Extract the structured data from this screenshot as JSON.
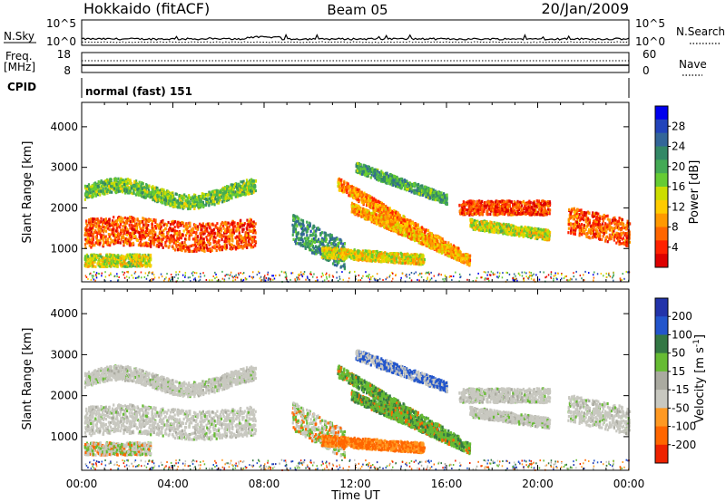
{
  "header": {
    "station": "Hokkaido (fitACF)",
    "beam": "Beam 05",
    "date": "20/Jan/2009"
  },
  "top_panels": {
    "nsky_label": "N.Sky",
    "nsky_ticks": [
      "10^5",
      "10^0"
    ],
    "nsearch_label": "N.Search",
    "nsearch_ticks": [
      "10^5",
      "10^0"
    ],
    "freq_label_1": "Freq.",
    "freq_label_2": "[MHz]",
    "freq_ticks": [
      "18",
      "8"
    ],
    "nave_label": "Nave",
    "nave_ticks": [
      "60",
      "0"
    ],
    "cpid_label": "CPID",
    "cpid_text": "normal (fast) 151"
  },
  "chart_data": [
    {
      "type": "heatmap",
      "name": "power",
      "ylabel": "Slant Range [km]",
      "yticks": [
        "1000",
        "2000",
        "3000",
        "4000"
      ],
      "colorbar": {
        "title": "Power [dB]",
        "ticks": [
          "28",
          "24",
          "20",
          "16",
          "12",
          "8",
          "4"
        ],
        "colors": [
          "#0000ee",
          "#2244bb",
          "#336699",
          "#338866",
          "#44aa55",
          "#66cc33",
          "#ccdd00",
          "#ffcc00",
          "#ff9900",
          "#ff6600",
          "#ff2200",
          "#dd0000"
        ]
      }
    },
    {
      "type": "heatmap",
      "name": "velocity",
      "ylabel": "Slant Range [km]",
      "yticks": [
        "1000",
        "2000",
        "3000",
        "4000"
      ],
      "colorbar": {
        "title": "Velocity [m s",
        "title_sup": "-1",
        "title_end": "]",
        "ticks": [
          "200",
          "100",
          "50",
          "15",
          "-15",
          "-50",
          "-100",
          "-200"
        ],
        "colors": [
          "#2233aa",
          "#2255cc",
          "#337744",
          "#66bb33",
          "#aaaaa0",
          "#c8c8c0",
          "#ff9922",
          "#ff6600",
          "#ee2200"
        ]
      },
      "xlabel": "Time UT",
      "xticks": [
        "00:00",
        "04:00",
        "08:00",
        "12:00",
        "16:00",
        "20:00",
        "00:00"
      ]
    }
  ]
}
